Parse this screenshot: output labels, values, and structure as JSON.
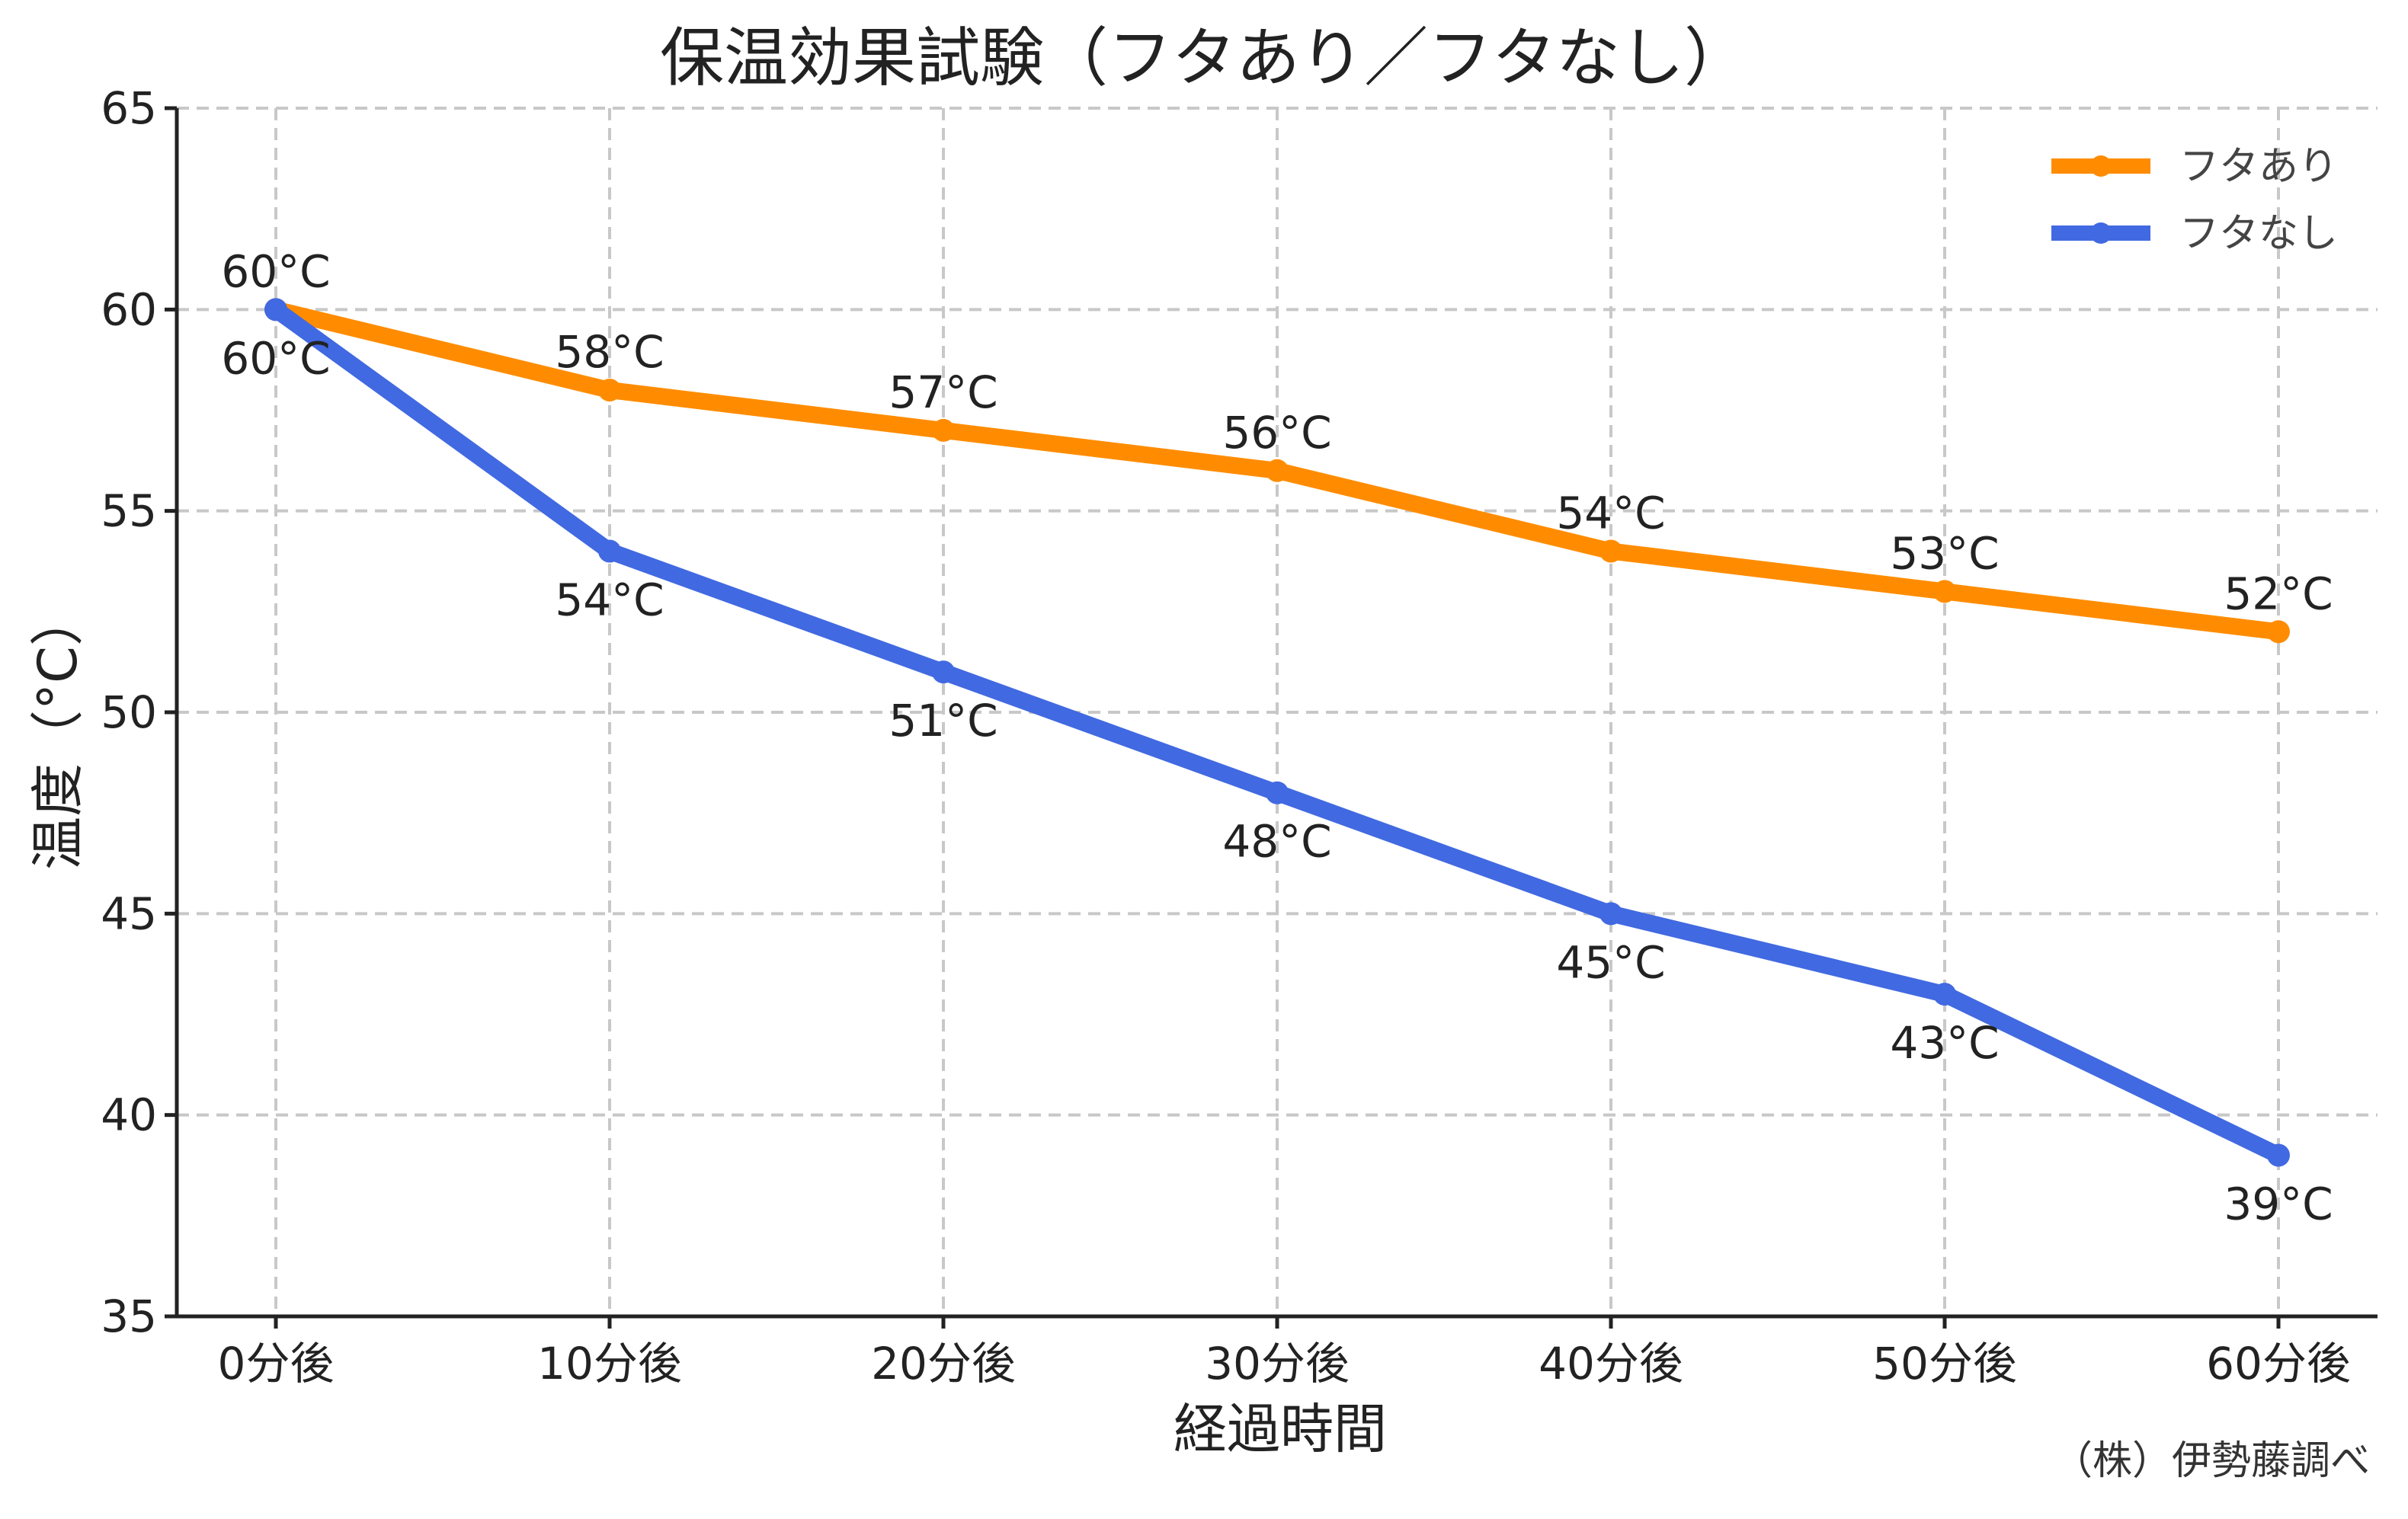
{
  "chart_data": {
    "type": "line",
    "title": "保温効果試験（フタあり／フタなし）",
    "xlabel": "経過時間",
    "ylabel": "温度（°C）",
    "categories": [
      "0分後",
      "10分後",
      "20分後",
      "30分後",
      "40分後",
      "50分後",
      "60分後"
    ],
    "ylim": [
      35,
      65
    ],
    "yticks": [
      35,
      40,
      45,
      50,
      55,
      60,
      65
    ],
    "grid": true,
    "legend_position": "top-right",
    "series": [
      {
        "name": "フタあり",
        "color": "#ff8c00",
        "values": [
          60,
          58,
          57,
          56,
          54,
          53,
          52
        ],
        "labels": [
          "60°C",
          "58°C",
          "57°C",
          "56°C",
          "54°C",
          "53°C",
          "52°C"
        ],
        "label_position": "above"
      },
      {
        "name": "フタなし",
        "color": "#4169e1",
        "values": [
          60,
          54,
          51,
          48,
          45,
          43,
          39
        ],
        "labels": [
          "60°C",
          "54°C",
          "51°C",
          "48°C",
          "45°C",
          "43°C",
          "39°C"
        ],
        "label_position": "below"
      }
    ],
    "source_note": "（株）伊勢藤調べ"
  }
}
